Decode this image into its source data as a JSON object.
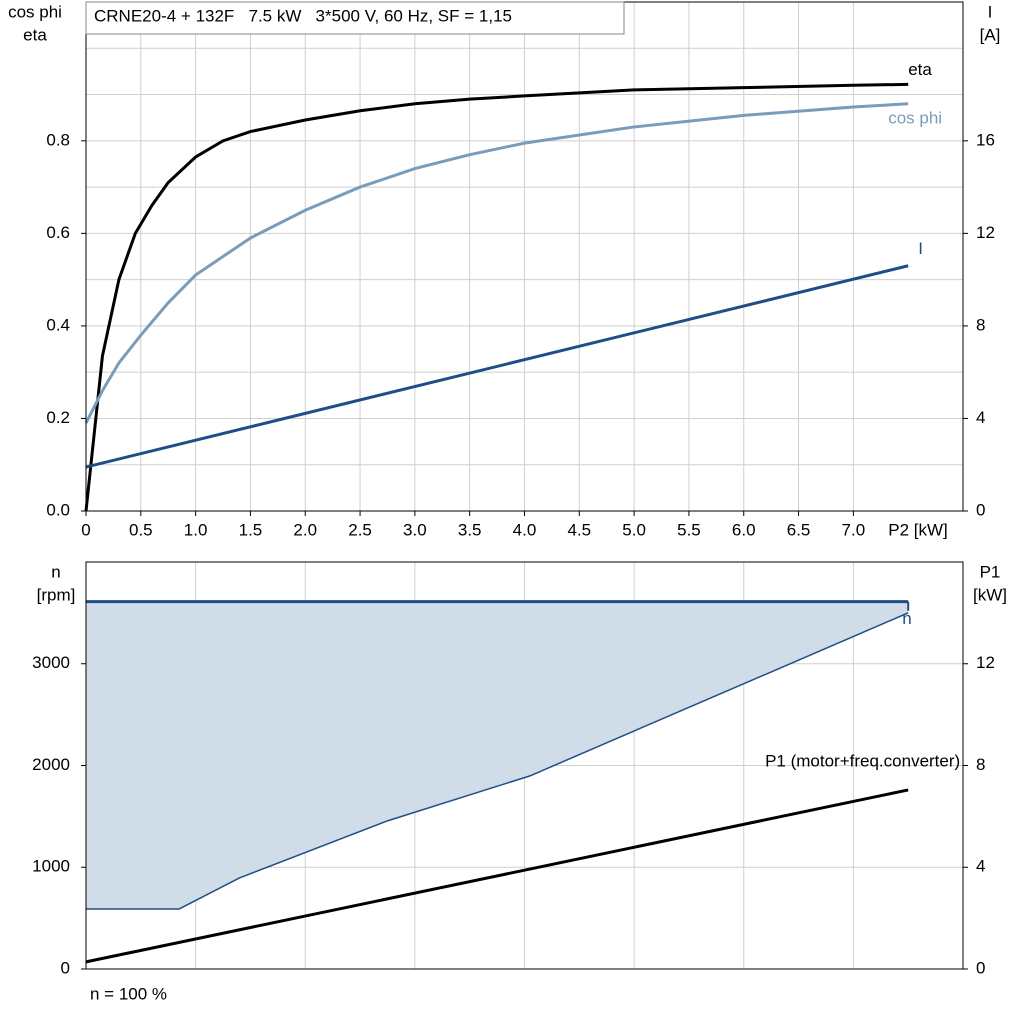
{
  "chart_data": [
    {
      "type": "line",
      "title": "CRNE20-4 + 132F   7.5 kW   3*500 V, 60 Hz, SF = 1,15",
      "y_label": [
        "cos phi",
        "eta"
      ],
      "y2_label": [
        "I",
        "[A]"
      ],
      "x_label": "P2 [kW]",
      "xlim": [
        0,
        8
      ],
      "xticks": [
        0,
        0.5,
        {
          "value": 1,
          "label": "1.0"
        },
        1.5,
        {
          "value": 2,
          "label": "2.0"
        },
        2.5,
        {
          "value": 3,
          "label": "3.0"
        },
        3.5,
        {
          "value": 4,
          "label": "4.0"
        },
        4.5,
        {
          "value": 5,
          "label": "5.0"
        },
        5.5,
        {
          "value": 6,
          "label": "6.0"
        },
        6.5,
        {
          "value": 7,
          "label": "7.0"
        }
      ],
      "ylim": [
        0,
        1.1
      ],
      "yticks": [
        {
          "value": 0,
          "label": "0.0"
        },
        0.2,
        0.4,
        0.6,
        0.8
      ],
      "ygrid": [
        0.1,
        0.3,
        0.5,
        0.7,
        0.9,
        1.0
      ],
      "y2lim": [
        0,
        22
      ],
      "y2ticks": [
        0,
        4,
        8,
        12,
        16
      ],
      "grid": true,
      "series": [
        {
          "name": "eta",
          "color": "#000000",
          "x": [
            0,
            0.15,
            0.3,
            0.45,
            0.6,
            0.75,
            1.0,
            1.25,
            1.5,
            2.0,
            2.5,
            3.0,
            3.5,
            4.0,
            5.0,
            6.0,
            7.0,
            7.5
          ],
          "values": [
            0,
            0.335,
            0.5,
            0.6,
            0.66,
            0.71,
            0.765,
            0.8,
            0.82,
            0.845,
            0.865,
            0.88,
            0.89,
            0.897,
            0.91,
            0.915,
            0.92,
            0.922
          ]
        },
        {
          "name": "cos phi",
          "color": "#7a9cbc",
          "x": [
            0,
            0.15,
            0.3,
            0.5,
            0.75,
            1.0,
            1.5,
            2.0,
            2.5,
            3.0,
            3.5,
            4.0,
            5.0,
            6.0,
            7.0,
            7.5
          ],
          "values": [
            0.19,
            0.26,
            0.32,
            0.38,
            0.45,
            0.51,
            0.59,
            0.65,
            0.7,
            0.74,
            0.77,
            0.795,
            0.83,
            0.855,
            0.873,
            0.88
          ]
        },
        {
          "name": "I",
          "color": "#1f4e86",
          "axis": "y2",
          "x": [
            0,
            7.5
          ],
          "values": [
            1.9,
            10.6
          ]
        }
      ]
    },
    {
      "type": "line",
      "y_label": [
        "n",
        "[rpm]"
      ],
      "y2_label": [
        "P1",
        "[kW]"
      ],
      "note": "n = 100 %",
      "xlim": [
        0,
        8
      ],
      "xgrid": [
        1,
        2,
        3,
        4,
        5,
        6,
        7
      ],
      "ylim": [
        0,
        4000
      ],
      "yticks": [
        0,
        1000,
        2000,
        3000
      ],
      "y2lim": [
        0,
        16
      ],
      "y2ticks": [
        0,
        4,
        8,
        12
      ],
      "grid": true,
      "band": {
        "color": "#d0dce8",
        "edge_color": "#1f4e86",
        "x": [
          0,
          0.85,
          1.4,
          2.75,
          4.05,
          7.5
        ],
        "upper": [
          3610,
          3610,
          3610,
          3610,
          3610,
          3610
        ],
        "lower": [
          590,
          590,
          895,
          1456,
          1898,
          3500
        ]
      },
      "series": [
        {
          "name": "n",
          "color": "#1f4e86",
          "x": [
            0,
            7.5
          ],
          "values": [
            3610,
            3610
          ]
        },
        {
          "name": "P1 (motor+freq.converter)",
          "color": "#000000",
          "axis": "y2",
          "x": [
            0,
            7.5
          ],
          "values": [
            0.28,
            7.04
          ]
        }
      ]
    }
  ]
}
